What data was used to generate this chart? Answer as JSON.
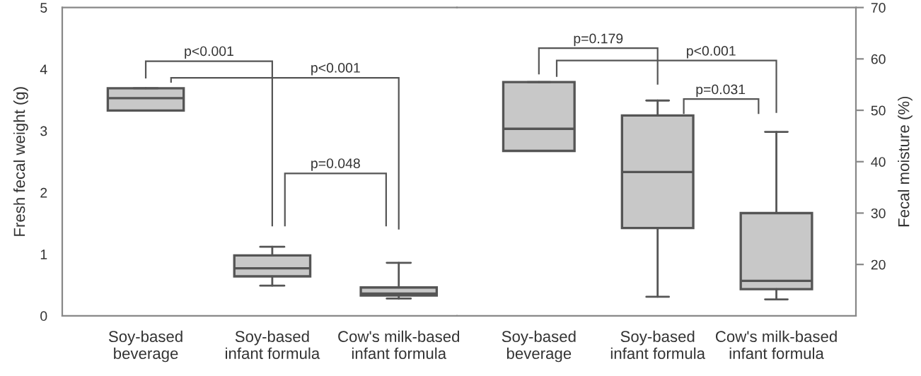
{
  "chart_data": [
    {
      "type": "box",
      "categories": [
        "Soy-based\nbeverage",
        "Soy-based\ninfant formula",
        "Cow's milk-based\ninfant formula"
      ],
      "ylabel": "Fresh fecal weight (g)",
      "ylim": [
        0,
        5
      ],
      "yticks": [
        0,
        1,
        2,
        3,
        4,
        5
      ],
      "boxes": [
        {
          "low": 3.33,
          "q1": 3.33,
          "median": 3.53,
          "q3": 3.69,
          "high": 3.69
        },
        {
          "low": 0.49,
          "q1": 0.64,
          "median": 0.77,
          "q3": 0.98,
          "high": 1.12
        },
        {
          "low": 0.28,
          "q1": 0.33,
          "median": 0.36,
          "q3": 0.46,
          "high": 0.86
        }
      ],
      "annotations": [
        "p<0.001",
        "p<0.001",
        "p=0.048"
      ]
    },
    {
      "type": "box",
      "categories": [
        "Soy-based\nbeverage",
        "Soy-based\ninfant formula",
        "Cow's milk-based\ninfant formula"
      ],
      "y2label": "Fecal moisture (%)",
      "y2lim": [
        10,
        70
      ],
      "y2ticks": [
        20,
        30,
        40,
        50,
        60,
        70
      ],
      "series": [
        {
          "axis": "y2",
          "boxes": [
            {
              "low": 42.1,
              "q1": 42.1,
              "median": 46.4,
              "q3": 55.5,
              "high": 55.5
            },
            {
              "low": 13.7,
              "q1": 27.1,
              "median": 38,
              "q3": 49,
              "high": 51.9
            },
            {
              "low": 13.2,
              "q1": 15.2,
              "median": 16.8,
              "q3": 30,
              "high": 45.8
            }
          ]
        }
      ],
      "annotations": [
        "p=0.179",
        "p<0.001",
        "p=0.031"
      ]
    }
  ]
}
